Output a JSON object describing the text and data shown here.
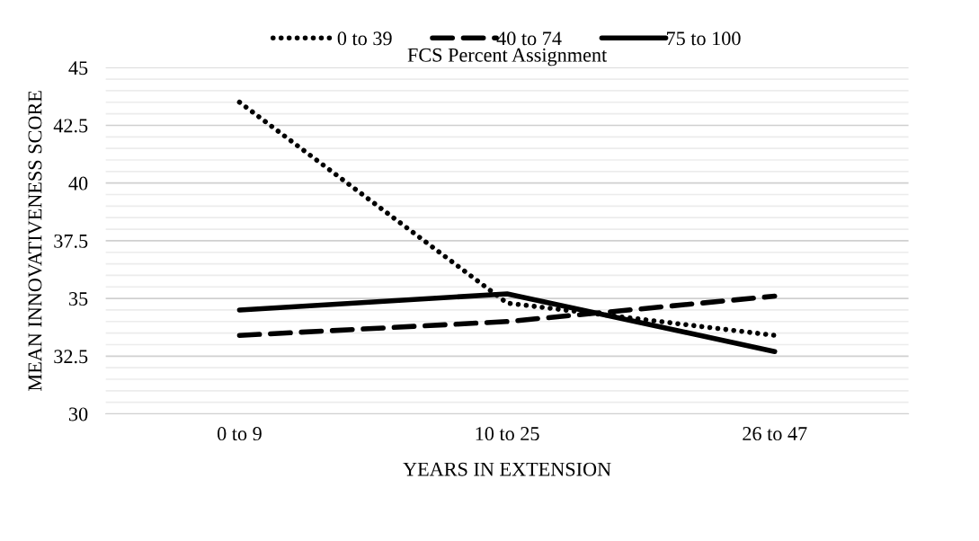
{
  "chart_data": {
    "type": "line",
    "categories": [
      "0 to 9",
      "10 to 25",
      "26 to 47"
    ],
    "series": [
      {
        "name": "0 to 39",
        "color": "#000000",
        "line_style": "dotted",
        "values": [
          43.5,
          34.8,
          33.4
        ]
      },
      {
        "name": "40 to 74",
        "color": "#000000",
        "line_style": "dashed",
        "values": [
          33.4,
          34.0,
          35.1
        ]
      },
      {
        "name": "75 to 100",
        "color": "#000000",
        "line_style": "solid",
        "values": [
          34.5,
          35.2,
          32.7
        ]
      }
    ],
    "xlabel": "YEARS IN EXTENSION",
    "ylabel": "MEAN INNOVATIVENESS SCORE",
    "legend_title": "FCS Percent Assignment",
    "legend": "top",
    "ylim": [
      30,
      45
    ],
    "yticks": [
      30,
      {
        "value": 30.5,
        "label": null
      },
      {
        "value": 31,
        "label": null
      },
      {
        "value": 31.5,
        "label": null
      },
      {
        "value": 32,
        "label": null
      },
      {
        "value": 32.5,
        "label": "32.5"
      },
      {
        "value": 33,
        "label": null
      },
      {
        "value": 33.5,
        "label": null
      },
      {
        "value": 34,
        "label": null
      },
      {
        "value": 34.5,
        "label": null
      },
      35,
      {
        "value": 35.5,
        "label": null
      },
      {
        "value": 36,
        "label": null
      },
      {
        "value": 36.5,
        "label": null
      },
      {
        "value": 37,
        "label": null
      },
      {
        "value": 37.5,
        "label": "37.5"
      },
      {
        "value": 38,
        "label": null
      },
      {
        "value": 38.5,
        "label": null
      },
      {
        "value": 39,
        "label": null
      },
      {
        "value": 39.5,
        "label": null
      },
      40,
      {
        "value": 40.5,
        "label": null
      },
      {
        "value": 41,
        "label": null
      },
      {
        "value": 41.5,
        "label": null
      },
      {
        "value": 42,
        "label": null
      },
      {
        "value": 42.5,
        "label": "42.5"
      },
      {
        "value": 43,
        "label": null
      },
      {
        "value": 43.5,
        "label": null
      },
      {
        "value": 44,
        "label": null
      },
      {
        "value": 44.5,
        "label": null
      },
      45
    ],
    "grid": "y",
    "marker": "none"
  }
}
